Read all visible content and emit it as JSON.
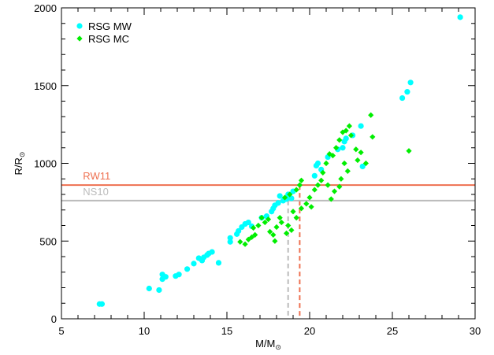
{
  "chart_data": {
    "type": "scatter",
    "xlabel": "M/M",
    "xlabel_sub": "⊙",
    "ylabel": "R/R",
    "ylabel_sub": "⊙",
    "xlim": [
      5,
      30
    ],
    "ylim": [
      0,
      2000
    ],
    "xticks": [
      5,
      10,
      15,
      20,
      25,
      30
    ],
    "yticks": [
      0,
      500,
      1000,
      1500,
      2000
    ],
    "legend_position": "top-left",
    "series": [
      {
        "name": "RSG MW",
        "marker": "circle",
        "color": "#00ffff",
        "points": [
          [
            7.3,
            95
          ],
          [
            7.45,
            95
          ],
          [
            10.3,
            195
          ],
          [
            10.9,
            185
          ],
          [
            11.1,
            285
          ],
          [
            11.1,
            255
          ],
          [
            11.3,
            270
          ],
          [
            11.9,
            275
          ],
          [
            12.1,
            285
          ],
          [
            12.6,
            320
          ],
          [
            13.0,
            355
          ],
          [
            13.3,
            390
          ],
          [
            13.5,
            375
          ],
          [
            13.6,
            395
          ],
          [
            13.8,
            410
          ],
          [
            13.9,
            420
          ],
          [
            14.1,
            430
          ],
          [
            14.5,
            360
          ],
          [
            15.2,
            495
          ],
          [
            15.2,
            520
          ],
          [
            15.6,
            545
          ],
          [
            15.7,
            565
          ],
          [
            15.9,
            590
          ],
          [
            16.1,
            610
          ],
          [
            16.3,
            620
          ],
          [
            16.5,
            595
          ],
          [
            17.1,
            650
          ],
          [
            17.4,
            660
          ],
          [
            17.7,
            690
          ],
          [
            17.8,
            710
          ],
          [
            17.9,
            730
          ],
          [
            18.1,
            745
          ],
          [
            18.2,
            790
          ],
          [
            18.4,
            760
          ],
          [
            18.6,
            770
          ],
          [
            18.7,
            800
          ],
          [
            18.9,
            775
          ],
          [
            19.0,
            820
          ],
          [
            20.3,
            920
          ],
          [
            20.4,
            985
          ],
          [
            20.5,
            1000
          ],
          [
            20.7,
            960
          ],
          [
            21.1,
            1040
          ],
          [
            21.7,
            1090
          ],
          [
            22.0,
            1100
          ],
          [
            22.1,
            1140
          ],
          [
            22.2,
            1160
          ],
          [
            22.6,
            1180
          ],
          [
            23.1,
            1240
          ],
          [
            23.2,
            980
          ],
          [
            25.6,
            1420
          ],
          [
            25.9,
            1460
          ],
          [
            26.1,
            1520
          ],
          [
            29.1,
            1940
          ]
        ]
      },
      {
        "name": "RSG MC",
        "marker": "diamond",
        "color": "#00ee00",
        "points": [
          [
            15.8,
            495
          ],
          [
            16.1,
            480
          ],
          [
            16.3,
            510
          ],
          [
            16.5,
            525
          ],
          [
            16.7,
            540
          ],
          [
            16.6,
            585
          ],
          [
            16.9,
            600
          ],
          [
            17.1,
            650
          ],
          [
            17.3,
            620
          ],
          [
            17.5,
            640
          ],
          [
            17.6,
            560
          ],
          [
            17.8,
            540
          ],
          [
            17.9,
            500
          ],
          [
            18.0,
            590
          ],
          [
            18.2,
            650
          ],
          [
            18.3,
            620
          ],
          [
            18.6,
            550
          ],
          [
            18.7,
            600
          ],
          [
            18.9,
            570
          ],
          [
            19.0,
            690
          ],
          [
            18.5,
            780
          ],
          [
            18.8,
            800
          ],
          [
            19.2,
            830
          ],
          [
            19.4,
            860
          ],
          [
            19.5,
            890
          ],
          [
            19.2,
            650
          ],
          [
            19.5,
            710
          ],
          [
            19.8,
            740
          ],
          [
            20.0,
            780
          ],
          [
            20.1,
            720
          ],
          [
            20.3,
            830
          ],
          [
            20.5,
            860
          ],
          [
            20.7,
            890
          ],
          [
            20.8,
            940
          ],
          [
            21.0,
            1000
          ],
          [
            21.2,
            1060
          ],
          [
            21.4,
            1050
          ],
          [
            21.6,
            1100
          ],
          [
            21.8,
            1150
          ],
          [
            22.0,
            1200
          ],
          [
            22.2,
            1210
          ],
          [
            22.4,
            1240
          ],
          [
            22.5,
            1180
          ],
          [
            22.1,
            1000
          ],
          [
            21.9,
            900
          ],
          [
            21.8,
            850
          ],
          [
            22.3,
            950
          ],
          [
            22.8,
            1090
          ],
          [
            21.3,
            770
          ],
          [
            21.5,
            820
          ],
          [
            21.1,
            860
          ],
          [
            22.9,
            1020
          ],
          [
            23.1,
            1070
          ],
          [
            23.4,
            1000
          ],
          [
            23.7,
            1310
          ],
          [
            23.8,
            1170
          ],
          [
            26.0,
            1080
          ]
        ]
      }
    ],
    "reference_lines": [
      {
        "label": "RW11",
        "y": 860,
        "x_drop": 19.4,
        "color": "#ee7050"
      },
      {
        "label": "NS10",
        "y": 760,
        "x_drop": 18.7,
        "color": "#bbbbbb"
      }
    ]
  }
}
